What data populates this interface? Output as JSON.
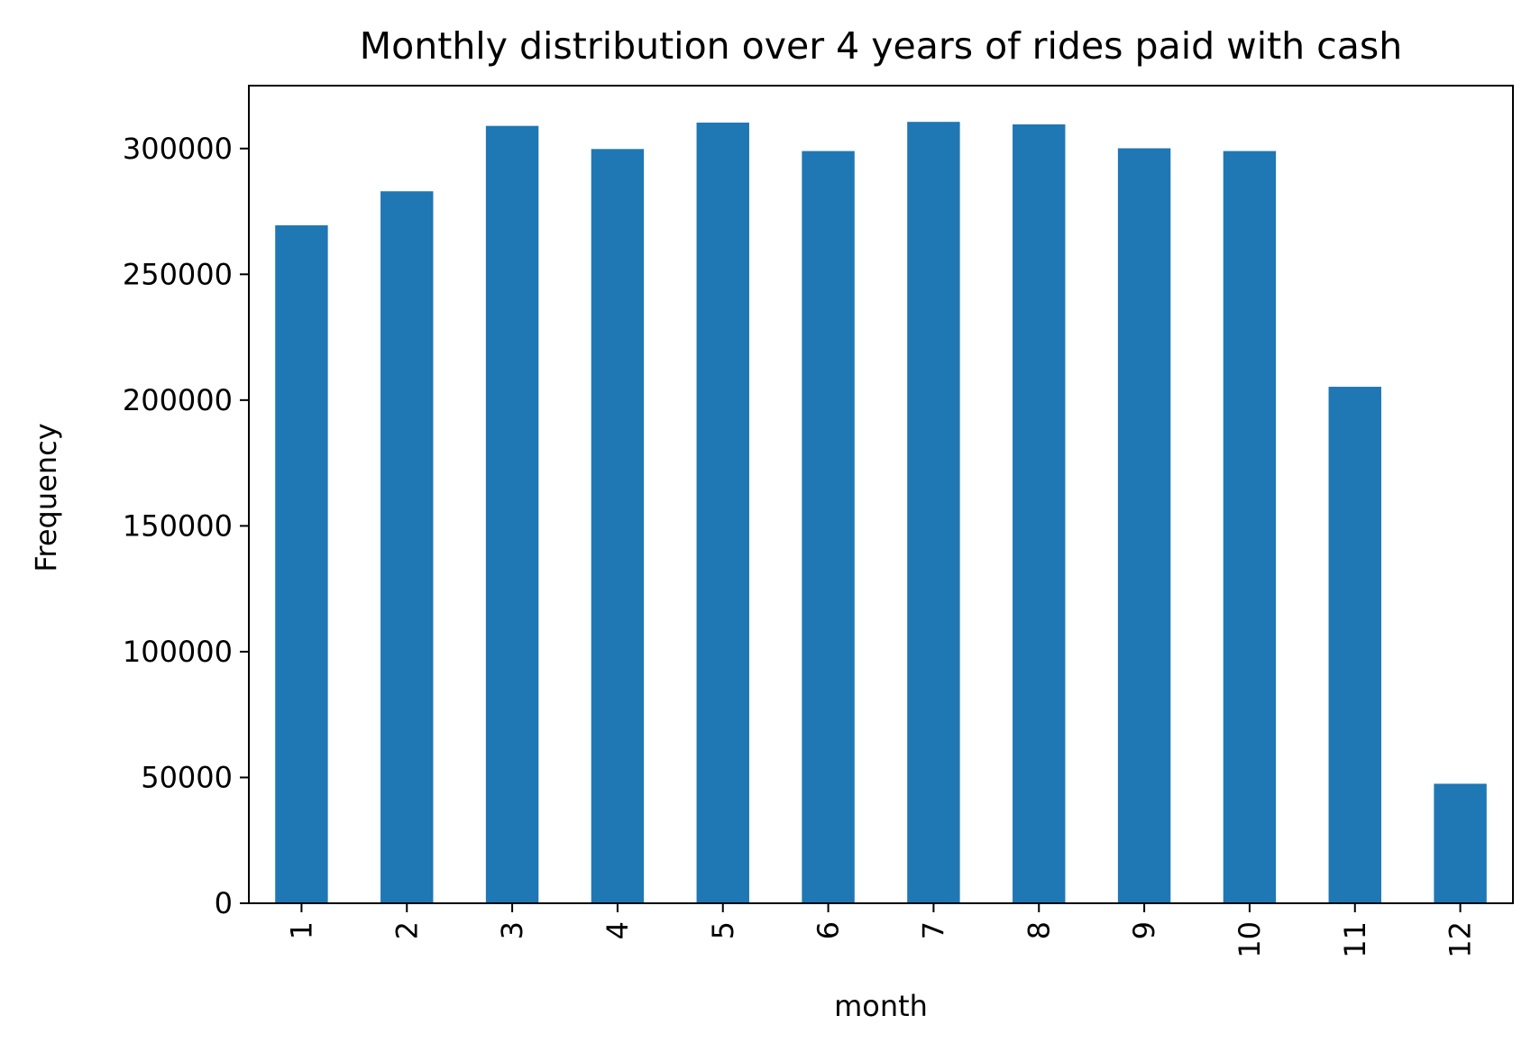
{
  "chart_data": {
    "type": "bar",
    "title": "Monthly distribution over 4 years of rides paid with cash",
    "xlabel": "month",
    "ylabel": "Frequency",
    "categories": [
      "1",
      "2",
      "3",
      "4",
      "5",
      "6",
      "7",
      "8",
      "9",
      "10",
      "11",
      "12"
    ],
    "series": [
      {
        "values": [
          269500,
          283000,
          309000,
          299800,
          310300,
          299000,
          310600,
          309600,
          300100,
          299000,
          205300,
          47500
        ]
      }
    ],
    "ylim": [
      0,
      325000
    ],
    "yticks": [
      0,
      50000,
      100000,
      150000,
      200000,
      250000,
      300000
    ],
    "ytick_labels": [
      "0",
      "50000",
      "100000",
      "150000",
      "200000",
      "250000",
      "300000"
    ],
    "xtick_rotation": 90,
    "grid": false,
    "legend": "none",
    "colors": {
      "bar": "#1f77b4",
      "axes": "#000000"
    }
  }
}
